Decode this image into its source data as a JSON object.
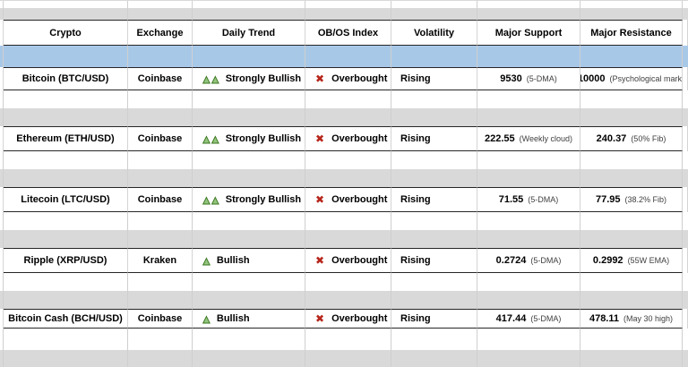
{
  "table": {
    "columns": [
      "Crypto",
      "Exchange",
      "Daily Trend",
      "OB/OS Index",
      "Volatility",
      "Major Support",
      "Major Resistance"
    ],
    "rows": [
      {
        "crypto": "Bitcoin (BTC/USD)",
        "exchange": "Coinbase",
        "trend_icons": "▲▲",
        "trend": "Strongly Bullish",
        "obos_icon": "✖",
        "obos": "Overbought",
        "volatility": "Rising",
        "support_value": "9530",
        "support_note": "(5-DMA)",
        "resistance_value": "10000",
        "resistance_note": "(Psychological mark)"
      },
      {
        "crypto": "Ethereum (ETH/USD)",
        "exchange": "Coinbase",
        "trend_icons": "▲▲",
        "trend": "Strongly Bullish",
        "obos_icon": "✖",
        "obos": "Overbought",
        "volatility": "Rising",
        "support_value": "222.55",
        "support_note": "(Weekly cloud)",
        "resistance_value": "240.37",
        "resistance_note": "(50% Fib)"
      },
      {
        "crypto": "Litecoin (LTC/USD)",
        "exchange": "Coinbase",
        "trend_icons": "▲▲",
        "trend": "Strongly Bullish",
        "obos_icon": "✖",
        "obos": "Overbought",
        "volatility": "Rising",
        "support_value": "71.55",
        "support_note": "(5-DMA)",
        "resistance_value": "77.95",
        "resistance_note": "(38.2% Fib)"
      },
      {
        "crypto": "Ripple (XRP/USD)",
        "exchange": "Kraken",
        "trend_icons": "▲",
        "trend": "Bullish",
        "obos_icon": "✖",
        "obos": "Overbought",
        "volatility": "Rising",
        "support_value": "0.2724",
        "support_note": "(5-DMA)",
        "resistance_value": "0.2992",
        "resistance_note": "(55W EMA)"
      },
      {
        "crypto": "Bitcoin Cash (BCH/USD)",
        "exchange": "Coinbase",
        "trend_icons": "▲",
        "trend": "Bullish",
        "obos_icon": "✖",
        "obos": "Overbought",
        "volatility": "Rising",
        "support_value": "417.44",
        "support_note": "(5-DMA)",
        "resistance_value": "478.11",
        "resistance_note": "(May 30 high)"
      }
    ]
  },
  "colors": {
    "highlight_band_blue": "#a8c8e8",
    "spacer_band_gray": "#d9d9d9",
    "bullish_green": "#93c47d",
    "bullish_green_outline": "#38761d",
    "overbought_red": "#b7261b",
    "gridline": "#cfcfcf",
    "row_border": "#262626"
  }
}
